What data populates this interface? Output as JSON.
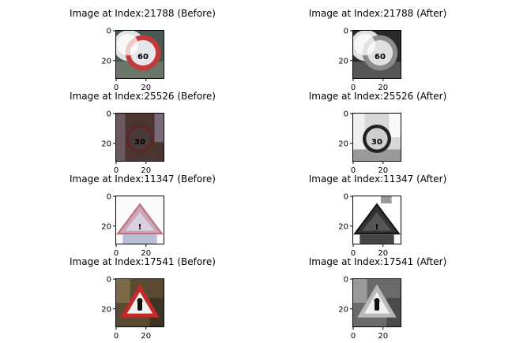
{
  "panels": [
    {
      "title": "Image at Index:21788 (Before)",
      "sign": "speed-limit-60",
      "variant": "color-bright",
      "sign_text": "60",
      "y_ticks": [
        "0",
        "20"
      ],
      "x_ticks": [
        "0",
        "20"
      ]
    },
    {
      "title": "Image at Index:21788 (After)",
      "sign": "speed-limit-60",
      "variant": "gray-bright",
      "sign_text": "60",
      "y_ticks": [
        "0",
        "20"
      ],
      "x_ticks": [
        "0",
        "20"
      ]
    },
    {
      "title": "Image at Index:25526 (Before)",
      "sign": "speed-limit-30",
      "variant": "color-dark",
      "sign_text": "30",
      "y_ticks": [
        "0",
        "20"
      ],
      "x_ticks": [
        "0",
        "20"
      ]
    },
    {
      "title": "Image at Index:25526 (After)",
      "sign": "speed-limit-30",
      "variant": "gray-light",
      "sign_text": "30",
      "y_ticks": [
        "0",
        "20"
      ],
      "x_ticks": [
        "0",
        "20"
      ]
    },
    {
      "title": "Image at Index:11347 (Before)",
      "sign": "general-caution",
      "variant": "color-pale",
      "sign_text": "!",
      "y_ticks": [
        "0",
        "20"
      ],
      "x_ticks": [
        "0",
        "20"
      ]
    },
    {
      "title": "Image at Index:11347 (After)",
      "sign": "general-caution",
      "variant": "gray-dark",
      "sign_text": "!",
      "y_ticks": [
        "0",
        "20"
      ],
      "x_ticks": [
        "0",
        "20"
      ]
    },
    {
      "title": "Image at Index:17541 (Before)",
      "sign": "warning-triangle",
      "variant": "color-warning",
      "sign_text": "",
      "y_ticks": [
        "0",
        "20"
      ],
      "x_ticks": [
        "0",
        "20"
      ]
    },
    {
      "title": "Image at Index:17541 (After)",
      "sign": "warning-triangle",
      "variant": "gray-warning",
      "sign_text": "",
      "y_ticks": [
        "0",
        "20"
      ],
      "x_ticks": [
        "0",
        "20"
      ]
    }
  ]
}
